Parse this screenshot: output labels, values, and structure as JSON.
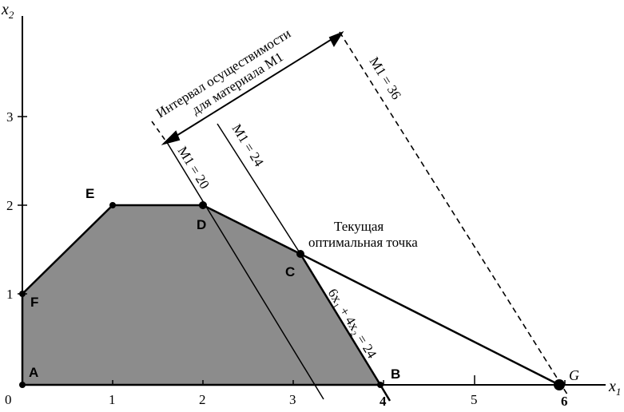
{
  "axes": {
    "x_label": "x",
    "x_label_sub": "1",
    "y_label": "x",
    "y_label_sub": "2",
    "origin": "0",
    "x_ticks": [
      "1",
      "2",
      "3",
      "4",
      "5",
      "6"
    ],
    "y_ticks": [
      "1",
      "2",
      "3"
    ]
  },
  "points": {
    "A": "A",
    "B": "B",
    "C": "C",
    "D": "D",
    "E": "E",
    "F": "F",
    "G": "G"
  },
  "lines": {
    "m1_20": "M1 = 20",
    "m1_24": "M1 = 24",
    "m1_36": "M1 = 36",
    "constraint": "6x₁ + 4x₂ = 24"
  },
  "annotations": {
    "interval_line1": "Интервал осуществимости",
    "interval_line2": "для материала M1",
    "current_opt_line1": "Текущая",
    "current_opt_line2": "оптимальная точка"
  },
  "colors": {
    "region_fill": "#8c8c8c",
    "ink": "#000000"
  }
}
